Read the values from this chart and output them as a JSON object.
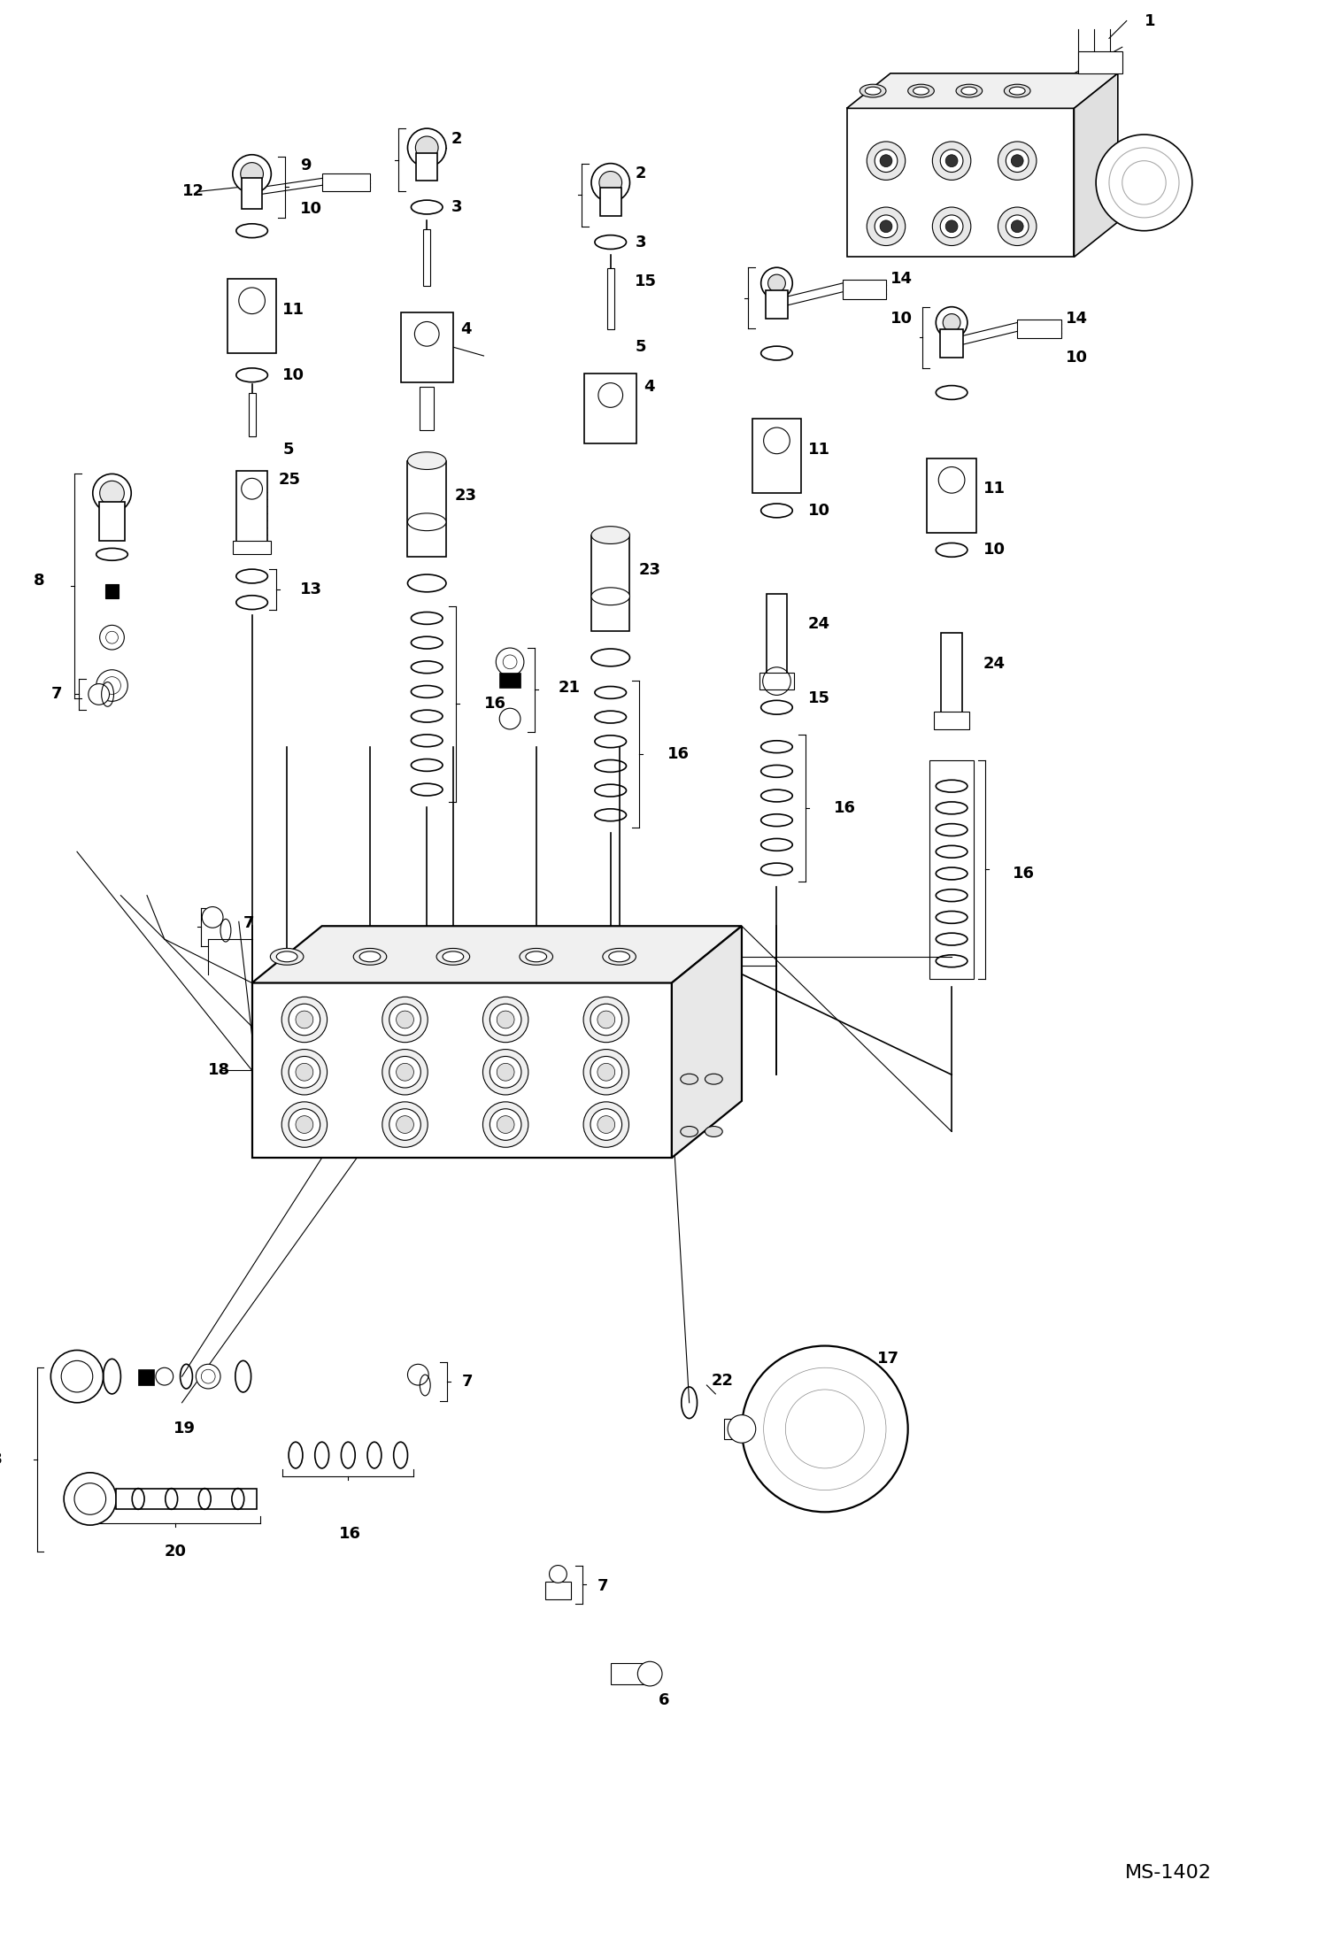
{
  "background_color": "#ffffff",
  "line_color": "#000000",
  "text_color": "#000000",
  "watermark": "MS-1402",
  "fig_width": 14.98,
  "fig_height": 21.93,
  "dpi": 100
}
